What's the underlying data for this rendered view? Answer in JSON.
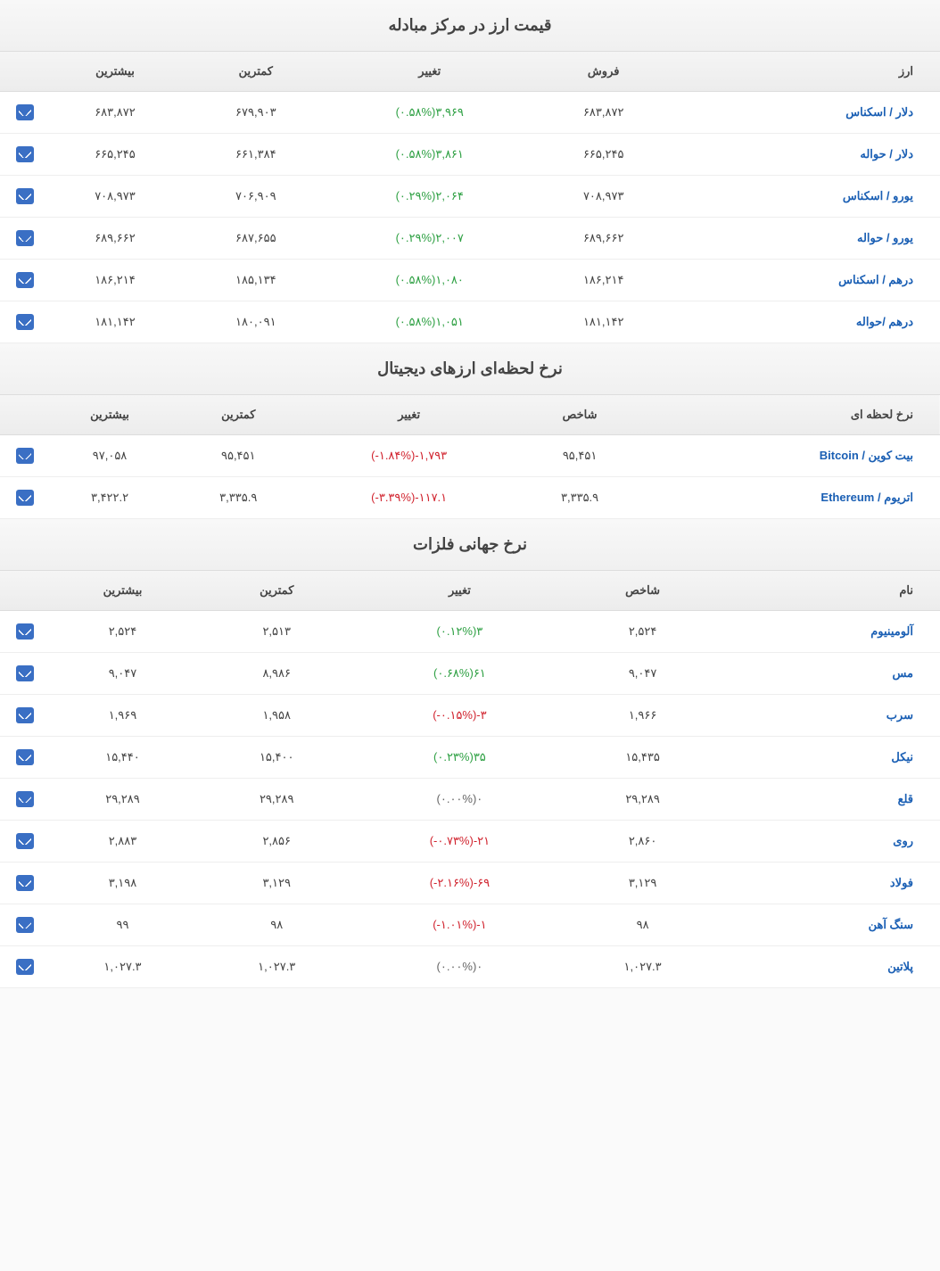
{
  "colors": {
    "link": "#1a5fb4",
    "positive": "#2ea043",
    "negative": "#d1242f",
    "neutral": "#666666",
    "header_bg_from": "#f5f5f5",
    "header_bg_to": "#ececec",
    "border": "#dddddd",
    "chart_icon_bg": "#3a6fc4"
  },
  "sections": [
    {
      "title": "قیمت ارز در مرکز مبادله",
      "columns": [
        "ارز",
        "فروش",
        "تغییر",
        "کمترین",
        "بیشترین",
        ""
      ],
      "valueKey": "sell",
      "rows": [
        {
          "name": "دلار / اسکناس",
          "sell": "۶۸۳,۸۷۲",
          "change_val": "۳,۹۶۹",
          "change_pct": "(۰.۵۸%)",
          "dir": "pos",
          "low": "۶۷۹,۹۰۳",
          "high": "۶۸۳,۸۷۲"
        },
        {
          "name": "دلار / حواله",
          "sell": "۶۶۵,۲۴۵",
          "change_val": "۳,۸۶۱",
          "change_pct": "(۰.۵۸%)",
          "dir": "pos",
          "low": "۶۶۱,۳۸۴",
          "high": "۶۶۵,۲۴۵"
        },
        {
          "name": "یورو / اسکناس",
          "sell": "۷۰۸,۹۷۳",
          "change_val": "۲,۰۶۴",
          "change_pct": "(۰.۲۹%)",
          "dir": "pos",
          "low": "۷۰۶,۹۰۹",
          "high": "۷۰۸,۹۷۳"
        },
        {
          "name": "یورو / حواله",
          "sell": "۶۸۹,۶۶۲",
          "change_val": "۲,۰۰۷",
          "change_pct": "(۰.۲۹%)",
          "dir": "pos",
          "low": "۶۸۷,۶۵۵",
          "high": "۶۸۹,۶۶۲"
        },
        {
          "name": "درهم / اسکناس",
          "sell": "۱۸۶,۲۱۴",
          "change_val": "۱,۰۸۰",
          "change_pct": "(۰.۵۸%)",
          "dir": "pos",
          "low": "۱۸۵,۱۳۴",
          "high": "۱۸۶,۲۱۴"
        },
        {
          "name": "درهم /حواله",
          "sell": "۱۸۱,۱۴۲",
          "change_val": "۱,۰۵۱",
          "change_pct": "(۰.۵۸%)",
          "dir": "pos",
          "low": "۱۸۰,۰۹۱",
          "high": "۱۸۱,۱۴۲"
        }
      ]
    },
    {
      "title": "نرخ لحظه‌ای ارزهای دیجیتال",
      "columns": [
        "نرخ لحظه ای",
        "شاخص",
        "تغییر",
        "کمترین",
        "بیشترین",
        ""
      ],
      "valueKey": "index",
      "rows": [
        {
          "name": "بیت کوین / Bitcoin",
          "index": "۹۵,۴۵۱",
          "change_val": "-۱,۷۹۳",
          "change_pct": "(-۱.۸۴%)",
          "dir": "neg",
          "low": "۹۵,۴۵۱",
          "high": "۹۷,۰۵۸"
        },
        {
          "name": "اتریوم / Ethereum",
          "index": "۳,۳۳۵.۹",
          "change_val": "-۱۱۷.۱",
          "change_pct": "(-۳.۳۹%)",
          "dir": "neg",
          "low": "۳,۳۳۵.۹",
          "high": "۳,۴۲۲.۲"
        }
      ]
    },
    {
      "title": "نرخ جهانی فلزات",
      "columns": [
        "نام",
        "شاخص",
        "تغییر",
        "کمترین",
        "بیشترین",
        ""
      ],
      "valueKey": "index",
      "rows": [
        {
          "name": "آلومینیوم",
          "index": "۲,۵۲۴",
          "change_val": "۳",
          "change_pct": "(۰.۱۲%)",
          "dir": "pos",
          "low": "۲,۵۱۳",
          "high": "۲,۵۲۴"
        },
        {
          "name": "مس",
          "index": "۹,۰۴۷",
          "change_val": "۶۱",
          "change_pct": "(۰.۶۸%)",
          "dir": "pos",
          "low": "۸,۹۸۶",
          "high": "۹,۰۴۷"
        },
        {
          "name": "سرب",
          "index": "۱,۹۶۶",
          "change_val": "-۳",
          "change_pct": "(-۰.۱۵%)",
          "dir": "neg",
          "low": "۱,۹۵۸",
          "high": "۱,۹۶۹"
        },
        {
          "name": "نیکل",
          "index": "۱۵,۴۳۵",
          "change_val": "۳۵",
          "change_pct": "(۰.۲۳%)",
          "dir": "pos",
          "low": "۱۵,۴۰۰",
          "high": "۱۵,۴۴۰"
        },
        {
          "name": "قلع",
          "index": "۲۹,۲۸۹",
          "change_val": "۰",
          "change_pct": "(۰.۰۰%)",
          "dir": "neutral",
          "low": "۲۹,۲۸۹",
          "high": "۲۹,۲۸۹"
        },
        {
          "name": "روی",
          "index": "۲,۸۶۰",
          "change_val": "-۲۱",
          "change_pct": "(-۰.۷۳%)",
          "dir": "neg",
          "low": "۲,۸۵۶",
          "high": "۲,۸۸۳"
        },
        {
          "name": "فولاد",
          "index": "۳,۱۲۹",
          "change_val": "-۶۹",
          "change_pct": "(-۲.۱۶%)",
          "dir": "neg",
          "low": "۳,۱۲۹",
          "high": "۳,۱۹۸"
        },
        {
          "name": "سنگ آهن",
          "index": "۹۸",
          "change_val": "-۱",
          "change_pct": "(-۱.۰۱%)",
          "dir": "neg",
          "low": "۹۸",
          "high": "۹۹"
        },
        {
          "name": "پلاتین",
          "index": "۱,۰۲۷.۳",
          "change_val": "۰",
          "change_pct": "(۰.۰۰%)",
          "dir": "neutral",
          "low": "۱,۰۲۷.۳",
          "high": "۱,۰۲۷.۳"
        }
      ]
    }
  ]
}
